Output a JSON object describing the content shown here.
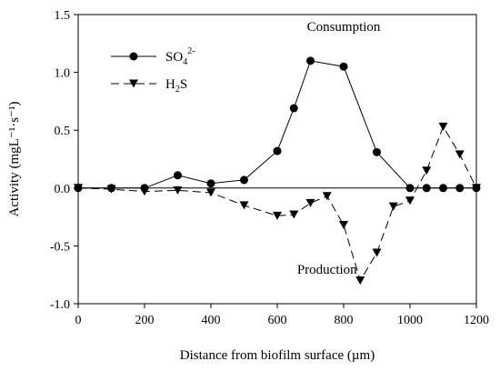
{
  "chart_data": {
    "type": "line",
    "xlabel": "Distance from biofilm surface (µm)",
    "ylabel": "Activity (mgL⁻¹·s⁻¹)",
    "xlim": [
      0,
      1200
    ],
    "ylim": [
      -1.0,
      1.5
    ],
    "xticks": [
      "0",
      "200",
      "400",
      "600",
      "800",
      "1000",
      "1200"
    ],
    "yticks": [
      "-1.0",
      "-0.5",
      "0.0",
      "0.5",
      "1.0",
      "1.5"
    ],
    "grid": false,
    "legend_position": "top-left",
    "zero_line": true,
    "annotations": [
      {
        "text": "Consumption",
        "x": 800,
        "y": 1.36
      },
      {
        "text": "Production",
        "x": 750,
        "y": -0.74
      }
    ],
    "series": [
      {
        "name": "SO42-",
        "legend_main": "SO",
        "legend_sub": "4",
        "legend_sup": "2-",
        "marker": "circle",
        "line_style": "solid",
        "color": "#000000",
        "x": [
          0,
          100,
          200,
          300,
          400,
          500,
          600,
          650,
          700,
          800,
          900,
          1000,
          1050,
          1100,
          1150,
          1200
        ],
        "y": [
          0.0,
          0.0,
          0.0,
          0.11,
          0.04,
          0.07,
          0.32,
          0.69,
          1.1,
          1.05,
          0.31,
          0.0,
          0.0,
          0.0,
          0.0,
          0.0
        ]
      },
      {
        "name": "H2S",
        "legend_main": "H",
        "legend_sub": "2",
        "legend_after": "S",
        "marker": "triangle-down",
        "line_style": "dashed",
        "color": "#000000",
        "x": [
          0,
          100,
          200,
          300,
          400,
          500,
          600,
          650,
          700,
          750,
          800,
          850,
          900,
          950,
          1000,
          1050,
          1100,
          1150,
          1200
        ],
        "y": [
          0.0,
          -0.01,
          -0.03,
          -0.02,
          -0.04,
          -0.15,
          -0.24,
          -0.23,
          -0.13,
          -0.07,
          -0.32,
          -0.8,
          -0.56,
          -0.16,
          -0.11,
          0.15,
          0.53,
          0.29,
          0.0
        ]
      }
    ]
  }
}
